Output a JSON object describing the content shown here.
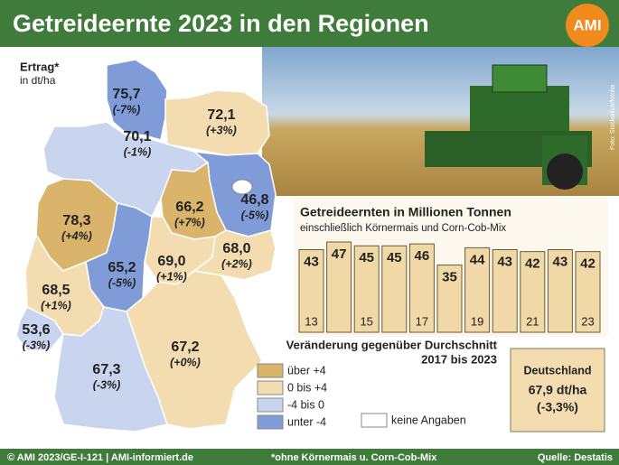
{
  "header": {
    "title": "Getreideernte 2023 in den Regionen",
    "logo": "AMI"
  },
  "photo_credit": "Foto: Stockwitch/fotolia",
  "map": {
    "title": "Ertrag*",
    "unit": "in dt/ha",
    "regions": [
      {
        "yield": "75,7",
        "change": "(-7%)",
        "color": "#7f9bd8"
      },
      {
        "yield": "72,1",
        "change": "(+3%)",
        "color": "#f3ddb0"
      },
      {
        "yield": "70,1",
        "change": "(-1%)",
        "color": "#c9d5ef"
      },
      {
        "yield": "46,8",
        "change": "(-5%)",
        "color": "#7f9bd8"
      },
      {
        "yield": "66,2",
        "change": "(+7%)",
        "color": "#d9b46a"
      },
      {
        "yield": "78,3",
        "change": "(+4%)",
        "color": "#d9b46a"
      },
      {
        "yield": "65,2",
        "change": "(-5%)",
        "color": "#7f9bd8"
      },
      {
        "yield": "69,0",
        "change": "(+1%)",
        "color": "#f3ddb0"
      },
      {
        "yield": "68,0",
        "change": "(+2%)",
        "color": "#f3ddb0"
      },
      {
        "yield": "68,5",
        "change": "(+1%)",
        "color": "#f3ddb0"
      },
      {
        "yield": "53,6",
        "change": "(-3%)",
        "color": "#c9d5ef"
      },
      {
        "yield": "67,2",
        "change": "(+0%)",
        "color": "#f3ddb0"
      },
      {
        "yield": "67,3",
        "change": "(-3%)",
        "color": "#c9d5ef"
      }
    ]
  },
  "legend": {
    "title": "Veränderung gegenüber Durchschnitt",
    "subtitle": "2017 bis 2023",
    "items": [
      {
        "label": "über +4",
        "color": "#d9b46a"
      },
      {
        "label": "0 bis +4",
        "color": "#f3ddb0"
      },
      {
        "label": "-4 bis 0",
        "color": "#c9d5ef"
      },
      {
        "label": "unter -4",
        "color": "#7f9bd8"
      },
      {
        "label": "keine Angaben",
        "color": "#ffffff"
      }
    ]
  },
  "summary": {
    "title": "Deutschland",
    "value": "67,9 dt/ha",
    "change": "(-3,3%)"
  },
  "chart_data": {
    "type": "bar",
    "title": "Getreideernten in Millionen Tonnen",
    "subtitle": "einschließlich Körnermais und Corn-Cob-Mix",
    "categories": [
      "13",
      null,
      "15",
      null,
      "17",
      null,
      "19",
      null,
      "21",
      null,
      "23"
    ],
    "values": [
      43,
      47,
      45,
      45,
      46,
      35,
      44,
      43,
      42,
      43,
      42
    ],
    "color": "#f0d9a6"
  },
  "footer": {
    "copyright": "© AMI 2023/GE-I-121 | AMI-informiert.de",
    "note": "*ohne Körnermais u. Corn-Cob-Mix",
    "source": "Quelle: Destatis"
  }
}
